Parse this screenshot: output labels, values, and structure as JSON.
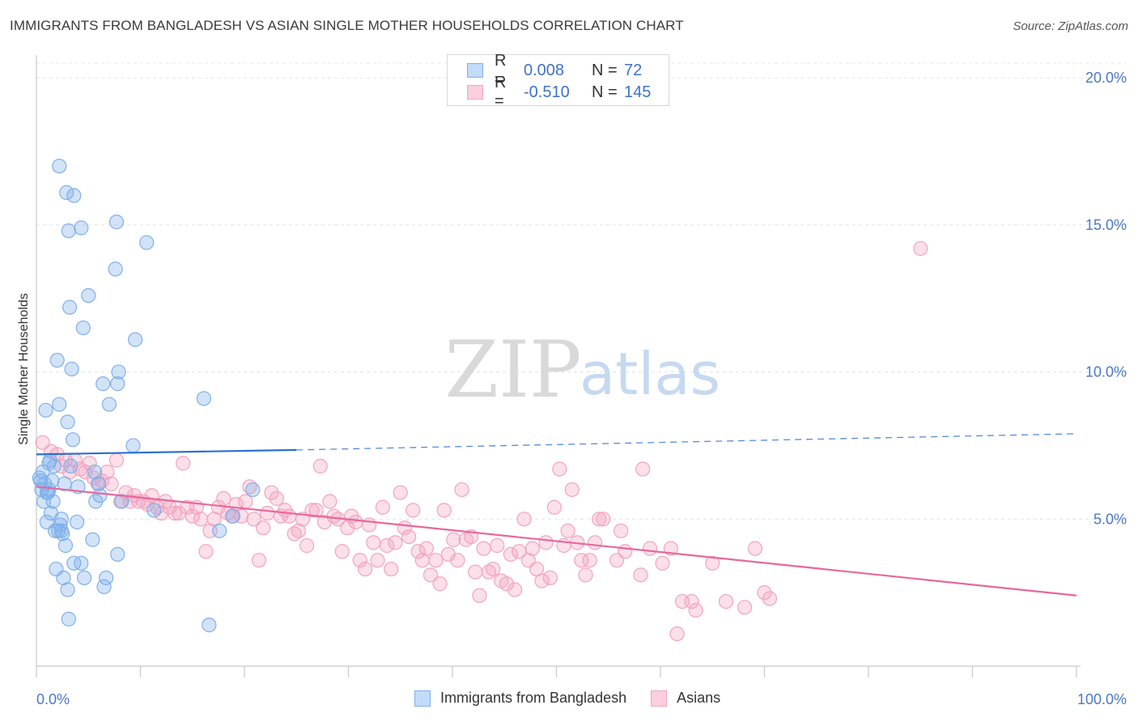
{
  "title": "IMMIGRANTS FROM BANGLADESH VS ASIAN SINGLE MOTHER HOUSEHOLDS CORRELATION CHART",
  "source": "Source: ZipAtlas.com",
  "watermark": {
    "zip": "ZIP",
    "atlas": "atlas"
  },
  "legend": {
    "r_label": "R =",
    "n_label": "N =",
    "rows": [
      {
        "r": "0.008",
        "n": "72"
      },
      {
        "r": "-0.510",
        "n": "145"
      }
    ]
  },
  "bottom_legend": [
    "Immigrants from Bangladesh",
    "Asians"
  ],
  "chart_data": {
    "type": "scatter",
    "title": "IMMIGRANTS FROM BANGLADESH VS ASIAN SINGLE MOTHER HOUSEHOLDS CORRELATION CHART",
    "xlabel": "",
    "ylabel": "Single Mother Households",
    "xlim": [
      0,
      100
    ],
    "ylim": [
      0,
      20.5
    ],
    "x_tick_labels": [
      "0.0%",
      "100.0%"
    ],
    "y_ticks": [
      5,
      10,
      15,
      20
    ],
    "y_tick_labels": [
      "5.0%",
      "10.0%",
      "15.0%",
      "20.0%"
    ],
    "grid": true,
    "legend_position": "top-center",
    "colors": {
      "bangladesh": "#7fb0ea",
      "asians": "#f4a3bf",
      "bangladesh_line": "#2a6fd0",
      "asians_line": "#e8679a"
    },
    "series": [
      {
        "name": "Immigrants from Bangladesh",
        "r": 0.008,
        "n": 72,
        "trend": {
          "x0": 0,
          "y0": 7.2,
          "x1": 25,
          "y1": 7.35,
          "dashed_to_x": 100,
          "dashed_to_y": 7.9
        },
        "points": [
          [
            0.3,
            6.4
          ],
          [
            0.5,
            6.0
          ],
          [
            0.6,
            6.6
          ],
          [
            0.7,
            5.6
          ],
          [
            0.8,
            6.2
          ],
          [
            0.9,
            8.7
          ],
          [
            1.0,
            4.9
          ],
          [
            1.1,
            5.9
          ],
          [
            1.2,
            6.9
          ],
          [
            1.3,
            7.0
          ],
          [
            1.4,
            5.2
          ],
          [
            1.5,
            6.3
          ],
          [
            1.6,
            5.6
          ],
          [
            1.7,
            6.8
          ],
          [
            1.8,
            4.6
          ],
          [
            1.9,
            3.3
          ],
          [
            2.0,
            10.4
          ],
          [
            2.1,
            4.6
          ],
          [
            2.2,
            8.9
          ],
          [
            2.3,
            4.8
          ],
          [
            2.2,
            17.0
          ],
          [
            2.4,
            5.0
          ],
          [
            2.5,
            4.5
          ],
          [
            2.6,
            3.0
          ],
          [
            2.7,
            6.2
          ],
          [
            2.8,
            4.1
          ],
          [
            2.9,
            16.1
          ],
          [
            3.0,
            8.3
          ],
          [
            3.0,
            2.6
          ],
          [
            3.1,
            14.8
          ],
          [
            3.1,
            1.6
          ],
          [
            3.2,
            12.2
          ],
          [
            3.3,
            6.8
          ],
          [
            3.4,
            10.1
          ],
          [
            3.5,
            7.7
          ],
          [
            3.6,
            3.5
          ],
          [
            3.6,
            16.0
          ],
          [
            3.9,
            4.9
          ],
          [
            4.0,
            6.1
          ],
          [
            4.3,
            3.5
          ],
          [
            4.3,
            14.9
          ],
          [
            4.5,
            11.5
          ],
          [
            4.6,
            3.0
          ],
          [
            5.0,
            12.6
          ],
          [
            5.4,
            4.3
          ],
          [
            5.6,
            6.6
          ],
          [
            5.7,
            5.6
          ],
          [
            6.0,
            6.2
          ],
          [
            6.1,
            5.8
          ],
          [
            6.4,
            9.6
          ],
          [
            6.5,
            2.7
          ],
          [
            6.7,
            3.0
          ],
          [
            7.0,
            8.9
          ],
          [
            7.6,
            13.5
          ],
          [
            7.7,
            15.1
          ],
          [
            7.8,
            9.6
          ],
          [
            7.8,
            3.8
          ],
          [
            7.9,
            10.0
          ],
          [
            8.2,
            5.6
          ],
          [
            9.3,
            7.5
          ],
          [
            9.5,
            11.1
          ],
          [
            10.6,
            14.4
          ],
          [
            11.3,
            5.3
          ],
          [
            16.1,
            9.1
          ],
          [
            16.6,
            1.4
          ],
          [
            17.6,
            4.6
          ],
          [
            18.9,
            5.1
          ],
          [
            20.8,
            6.0
          ],
          [
            0.4,
            6.3
          ],
          [
            1.0,
            5.9
          ],
          [
            1.2,
            6.0
          ],
          [
            2.4,
            4.6
          ]
        ]
      },
      {
        "name": "Asians",
        "r": -0.51,
        "n": 145,
        "trend": {
          "x0": 0,
          "y0": 6.1,
          "x1": 100,
          "y1": 2.4
        },
        "points": [
          [
            0.6,
            7.6
          ],
          [
            1.4,
            7.3
          ],
          [
            2.0,
            7.2
          ],
          [
            2.4,
            6.8
          ],
          [
            2.8,
            7.0
          ],
          [
            3.2,
            6.6
          ],
          [
            3.7,
            7.0
          ],
          [
            4.2,
            6.7
          ],
          [
            4.7,
            6.6
          ],
          [
            5.1,
            6.9
          ],
          [
            5.5,
            6.4
          ],
          [
            5.9,
            6.2
          ],
          [
            6.3,
            6.3
          ],
          [
            6.8,
            6.6
          ],
          [
            7.2,
            6.2
          ],
          [
            7.7,
            7.0
          ],
          [
            8.1,
            5.6
          ],
          [
            8.6,
            5.9
          ],
          [
            9.0,
            5.6
          ],
          [
            9.4,
            5.8
          ],
          [
            9.8,
            5.6
          ],
          [
            10.3,
            5.6
          ],
          [
            10.7,
            5.5
          ],
          [
            11.1,
            5.8
          ],
          [
            11.6,
            5.4
          ],
          [
            12.0,
            5.2
          ],
          [
            12.4,
            5.6
          ],
          [
            12.8,
            5.4
          ],
          [
            13.3,
            5.2
          ],
          [
            13.7,
            5.2
          ],
          [
            14.1,
            6.9
          ],
          [
            14.5,
            5.4
          ],
          [
            15.0,
            5.1
          ],
          [
            15.4,
            5.4
          ],
          [
            15.8,
            5.0
          ],
          [
            16.3,
            3.9
          ],
          [
            16.7,
            4.6
          ],
          [
            17.1,
            5.0
          ],
          [
            17.5,
            5.4
          ],
          [
            18.0,
            5.7
          ],
          [
            18.4,
            5.2
          ],
          [
            18.8,
            5.1
          ],
          [
            19.2,
            5.5
          ],
          [
            19.7,
            5.1
          ],
          [
            20.1,
            5.6
          ],
          [
            20.5,
            6.1
          ],
          [
            20.9,
            5.0
          ],
          [
            21.4,
            3.6
          ],
          [
            21.8,
            4.7
          ],
          [
            22.2,
            5.2
          ],
          [
            22.6,
            5.9
          ],
          [
            23.1,
            5.7
          ],
          [
            23.5,
            5.1
          ],
          [
            23.9,
            5.3
          ],
          [
            24.3,
            5.1
          ],
          [
            24.8,
            4.5
          ],
          [
            25.2,
            4.6
          ],
          [
            25.6,
            5.0
          ],
          [
            26.0,
            4.1
          ],
          [
            26.5,
            5.3
          ],
          [
            26.9,
            5.3
          ],
          [
            27.3,
            6.8
          ],
          [
            27.7,
            4.9
          ],
          [
            28.2,
            5.6
          ],
          [
            28.6,
            5.1
          ],
          [
            29.0,
            5.0
          ],
          [
            29.4,
            3.9
          ],
          [
            29.9,
            4.7
          ],
          [
            30.3,
            5.1
          ],
          [
            30.7,
            4.9
          ],
          [
            31.1,
            3.6
          ],
          [
            31.6,
            3.3
          ],
          [
            32.0,
            4.8
          ],
          [
            32.4,
            4.2
          ],
          [
            32.8,
            3.6
          ],
          [
            33.3,
            5.4
          ],
          [
            33.7,
            4.1
          ],
          [
            34.1,
            3.3
          ],
          [
            34.5,
            4.2
          ],
          [
            35.0,
            5.9
          ],
          [
            35.4,
            4.7
          ],
          [
            35.8,
            4.4
          ],
          [
            36.2,
            5.3
          ],
          [
            36.7,
            3.9
          ],
          [
            37.1,
            3.6
          ],
          [
            37.5,
            4.0
          ],
          [
            37.9,
            3.1
          ],
          [
            38.4,
            3.6
          ],
          [
            38.8,
            2.8
          ],
          [
            39.2,
            5.3
          ],
          [
            39.6,
            3.8
          ],
          [
            40.1,
            4.3
          ],
          [
            40.5,
            3.6
          ],
          [
            40.9,
            6.0
          ],
          [
            41.3,
            4.3
          ],
          [
            41.8,
            4.4
          ],
          [
            42.2,
            3.2
          ],
          [
            42.6,
            2.4
          ],
          [
            43.0,
            4.0
          ],
          [
            43.5,
            3.2
          ],
          [
            43.9,
            3.3
          ],
          [
            44.3,
            4.1
          ],
          [
            44.7,
            2.9
          ],
          [
            45.2,
            2.8
          ],
          [
            45.6,
            3.8
          ],
          [
            46.0,
            2.6
          ],
          [
            46.4,
            3.9
          ],
          [
            46.9,
            5.0
          ],
          [
            47.3,
            3.6
          ],
          [
            47.7,
            4.0
          ],
          [
            48.1,
            3.3
          ],
          [
            48.6,
            2.9
          ],
          [
            49.0,
            4.2
          ],
          [
            49.4,
            3.0
          ],
          [
            49.8,
            5.4
          ],
          [
            50.3,
            6.7
          ],
          [
            50.7,
            4.1
          ],
          [
            51.1,
            4.6
          ],
          [
            51.5,
            6.0
          ],
          [
            52.0,
            4.2
          ],
          [
            52.4,
            3.6
          ],
          [
            52.8,
            3.1
          ],
          [
            53.2,
            3.6
          ],
          [
            53.7,
            4.2
          ],
          [
            54.1,
            5.0
          ],
          [
            54.5,
            5.0
          ],
          [
            55.8,
            3.6
          ],
          [
            56.2,
            4.6
          ],
          [
            56.6,
            3.9
          ],
          [
            58.1,
            3.1
          ],
          [
            58.3,
            6.7
          ],
          [
            59.0,
            4.0
          ],
          [
            60.2,
            3.5
          ],
          [
            61.0,
            4.0
          ],
          [
            61.6,
            1.1
          ],
          [
            62.1,
            2.2
          ],
          [
            63.0,
            2.2
          ],
          [
            63.4,
            1.9
          ],
          [
            65.0,
            3.5
          ],
          [
            66.3,
            2.2
          ],
          [
            68.1,
            2.0
          ],
          [
            69.1,
            4.0
          ],
          [
            70.5,
            2.3
          ],
          [
            85.0,
            14.2
          ],
          [
            70.0,
            2.5
          ]
        ]
      }
    ]
  }
}
